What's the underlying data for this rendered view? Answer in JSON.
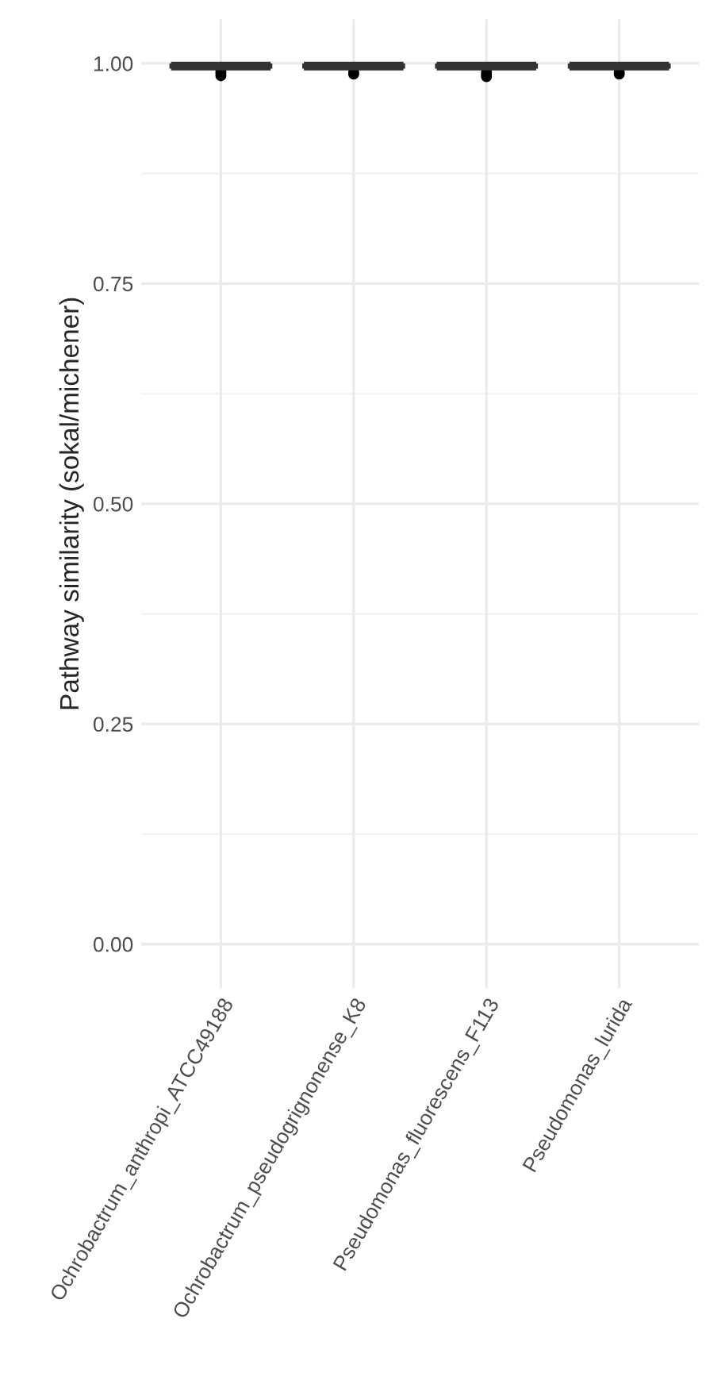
{
  "chart_data": {
    "type": "box",
    "ylabel": "Pathway similarity (sokal/michener)",
    "categories": [
      "Ochrobactrum_anthropi_ATCC49188",
      "Ochrobactrum_pseudogrignonense_K8",
      "Pseudomonas_fluorescens_F113",
      "Pseudomonas_lurida"
    ],
    "boxes": [
      {
        "low": 0.993,
        "q1": 0.996,
        "median": 0.997,
        "q3": 0.998,
        "high": 1.0,
        "outliers": [
          0.986,
          0.989,
          0.991
        ]
      },
      {
        "low": 0.993,
        "q1": 0.996,
        "median": 0.997,
        "q3": 0.998,
        "high": 1.0,
        "outliers": [
          0.988,
          0.99
        ]
      },
      {
        "low": 0.993,
        "q1": 0.996,
        "median": 0.997,
        "q3": 0.998,
        "high": 1.0,
        "outliers": [
          0.985,
          0.988,
          0.99
        ]
      },
      {
        "low": 0.993,
        "q1": 0.996,
        "median": 0.997,
        "q3": 0.998,
        "high": 1.0,
        "outliers": [
          0.988,
          0.99
        ]
      }
    ],
    "color": "#333333",
    "ylim": [
      -0.05,
      1.05
    ],
    "yticks": [
      {
        "value": 0,
        "label": "0.00"
      },
      {
        "value": 0.25,
        "label": "0.25"
      },
      {
        "value": 0.5,
        "label": "0.50"
      },
      {
        "value": 0.75,
        "label": "0.75"
      },
      {
        "value": 1,
        "label": "1.00"
      }
    ],
    "grid": true
  }
}
